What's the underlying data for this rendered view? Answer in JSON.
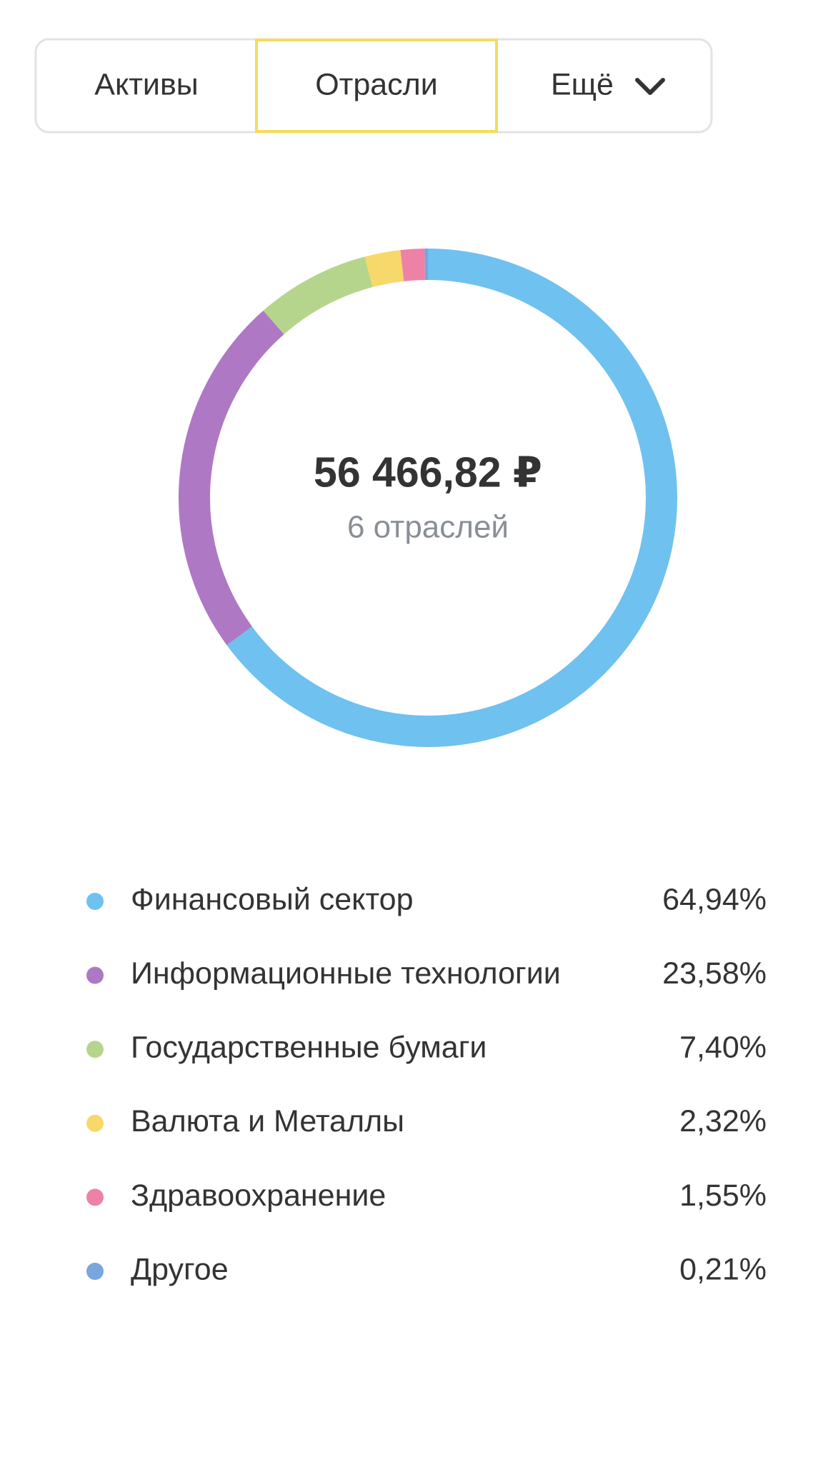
{
  "tabs": [
    "Активы",
    "Отрасли",
    "Ещё"
  ],
  "chart_data": {
    "type": "donut",
    "center_value": "56 466,82 ₽",
    "center_label": "6 отраслей",
    "categories": [
      "Финансовый сектор",
      "Информационные технологии",
      "Государственные бумаги",
      "Валюта и Металлы",
      "Здравоохранение",
      "Другое"
    ],
    "values": [
      64.94,
      23.58,
      7.4,
      2.32,
      1.55,
      0.21
    ],
    "value_labels": [
      "64,94%",
      "23,58%",
      "7,40%",
      "2,32%",
      "1,55%",
      "0,21%"
    ],
    "colors": [
      "#6fc1f0",
      "#ae78c4",
      "#b6d58c",
      "#f7d86a",
      "#ee82a6",
      "#78a6dd"
    ]
  }
}
